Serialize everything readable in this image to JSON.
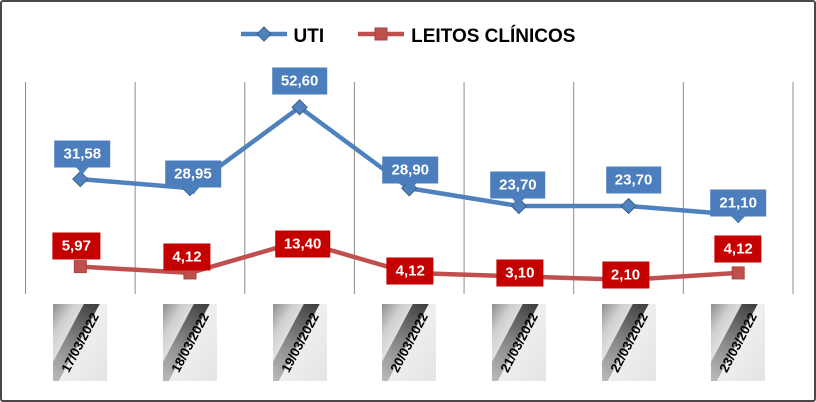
{
  "chart_data": {
    "type": "line",
    "title": "",
    "xlabel": "",
    "ylabel": "",
    "categories": [
      "17/03/2022",
      "18/03/2022",
      "19/03/2022",
      "20/03/2022",
      "21/03/2022",
      "22/03/2022",
      "23/03/2022"
    ],
    "series": [
      {
        "name": "UTI",
        "marker": "diamond",
        "line_color": "#4F81BD",
        "marker_edge": "#38618F",
        "label_bg": "#4C7EBD",
        "values": [
          31.58,
          28.95,
          52.6,
          28.9,
          23.7,
          23.7,
          21.1
        ],
        "labels": [
          "31,58",
          "28,95",
          "52,60",
          "28,90",
          "23,70",
          "23,70",
          "21,10"
        ]
      },
      {
        "name": "LEITOS CLÍNICOS",
        "marker": "square",
        "line_color": "#C0504D",
        "marker_edge": "#A8433F",
        "label_bg": "#C40000",
        "values": [
          5.97,
          4.12,
          13.4,
          4.12,
          3.1,
          2.1,
          4.12
        ],
        "labels": [
          "5,97",
          "4,12",
          "13,40",
          "4,12",
          "3,10",
          "2,10",
          "4,12"
        ]
      }
    ],
    "ylim": [
      0,
      60
    ],
    "grid": "vertical category separators only",
    "legend_position": "top-center",
    "x_axis_style": "dates rotated ~62deg on gray gradient tiles"
  },
  "colors": {
    "uti_blue": "#4F81BD",
    "leitos_red": "#C0504D",
    "red_label_bg": "#C40000",
    "blue_label_bg": "#4C7EBD",
    "gridline": "#8C8C8C",
    "frame_border": "#494949",
    "background": "#FFFFFF",
    "legend_text": "#000000"
  }
}
